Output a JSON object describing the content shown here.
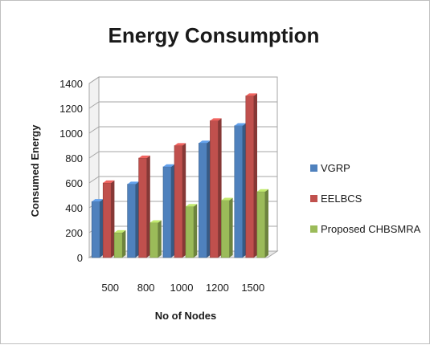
{
  "chart_data": {
    "type": "bar",
    "title": "Energy Consumption",
    "xlabel": "No of Nodes",
    "ylabel": "Consumed Energy",
    "categories": [
      "500",
      "800",
      "1000",
      "1200",
      "1500"
    ],
    "ylim": [
      0,
      1400
    ],
    "yticks": [
      "0",
      "200",
      "400",
      "600",
      "800",
      "1000",
      "1200",
      "1400"
    ],
    "grid": true,
    "legend_position": "right",
    "series": [
      {
        "name": "VGRP",
        "color": "#4f81bd",
        "values": [
          450,
          590,
          730,
          920,
          1060
        ]
      },
      {
        "name": "EELBCS",
        "color": "#c0504d",
        "values": [
          600,
          800,
          900,
          1100,
          1300
        ]
      },
      {
        "name": "Proposed CHBSMRA",
        "color": "#9bbb59",
        "values": [
          200,
          280,
          410,
          460,
          530
        ]
      }
    ]
  }
}
